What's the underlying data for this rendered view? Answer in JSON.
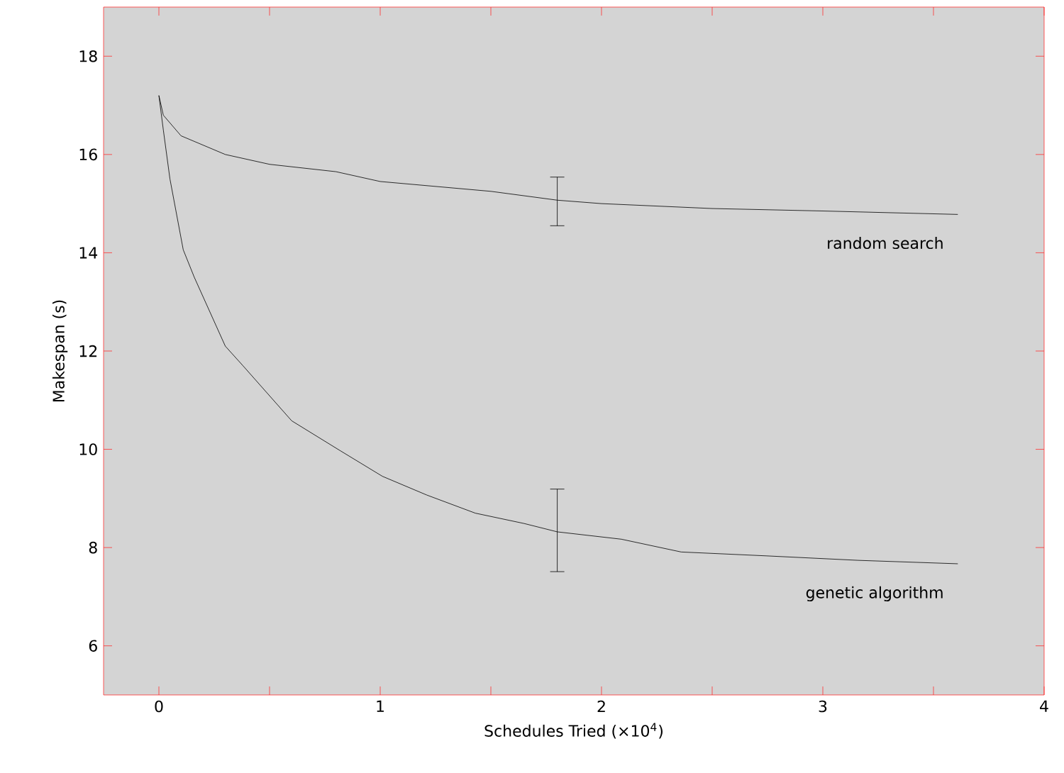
{
  "chart_data": {
    "type": "line",
    "xlabel": "Schedules Tried (×10$^{4}$)",
    "ylabel": "Makespan (s)",
    "xlim": [
      -0.25,
      4
    ],
    "ylim": [
      5,
      19
    ],
    "xticks": [
      0,
      1,
      2,
      3,
      4
    ],
    "yticks": [
      6,
      8,
      10,
      12,
      14,
      16,
      18
    ],
    "marker": "none",
    "line_style": "solid",
    "series": [
      {
        "name": "random search",
        "color": "#000000",
        "x": [
          0,
          0.02,
          0.1,
          0.3,
          0.5,
          0.8,
          1.0,
          1.5,
          1.8,
          2.0,
          2.5,
          3.0,
          3.61
        ],
        "values": [
          17.2,
          16.8,
          16.38,
          16.0,
          15.8,
          15.65,
          15.45,
          15.25,
          15.07,
          15.0,
          14.9,
          14.85,
          14.78
        ],
        "errors": [
          null,
          null,
          null,
          null,
          null,
          null,
          null,
          null,
          [
            14.55,
            15.54
          ],
          null,
          null,
          null,
          null
        ]
      },
      {
        "name": "genetic algorithm",
        "color": "#000000",
        "x": [
          0,
          0.02,
          0.05,
          0.11,
          0.16,
          0.3,
          0.38,
          0.6,
          0.82,
          1.01,
          1.21,
          1.43,
          1.65,
          1.8,
          2.09,
          2.36,
          2.75,
          3.16,
          3.61
        ],
        "values": [
          17.2,
          16.5,
          15.5,
          14.06,
          13.5,
          12.1,
          11.7,
          10.58,
          9.97,
          9.45,
          9.07,
          8.7,
          8.49,
          8.32,
          8.17,
          7.91,
          7.83,
          7.74,
          7.67
        ],
        "errors": [
          null,
          null,
          null,
          null,
          null,
          null,
          null,
          null,
          null,
          null,
          null,
          null,
          null,
          [
            7.51,
            9.19
          ],
          null,
          null,
          null,
          null,
          null
        ]
      }
    ]
  }
}
